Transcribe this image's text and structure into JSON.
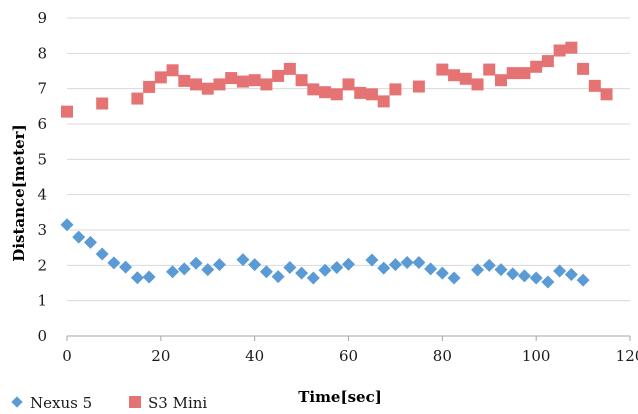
{
  "chart_data": {
    "type": "scatter",
    "title": "",
    "xlabel": "Time[sec]",
    "ylabel": "Distance[meter]",
    "xlim": [
      0,
      120
    ],
    "ylim": [
      0,
      9
    ],
    "xticks": [
      "0",
      "20",
      "40",
      "60",
      "80",
      "100",
      "120"
    ],
    "yticks": [
      "0",
      "1",
      "2",
      "3",
      "4",
      "5",
      "6",
      "7",
      "8",
      "9"
    ],
    "grid": "horizontal",
    "legend_position": "bottom-left",
    "series": [
      {
        "name": "Nexus 5",
        "marker": "diamond",
        "color": "#5b9bd5",
        "points": [
          [
            0,
            3.15
          ],
          [
            2.5,
            2.8
          ],
          [
            5,
            2.65
          ],
          [
            7.5,
            2.32
          ],
          [
            10,
            2.07
          ],
          [
            12.5,
            1.95
          ],
          [
            15,
            1.65
          ],
          [
            17.5,
            1.67
          ],
          [
            22.5,
            1.82
          ],
          [
            25,
            1.9
          ],
          [
            27.5,
            2.06
          ],
          [
            30,
            1.88
          ],
          [
            32.5,
            2.02
          ],
          [
            37.5,
            2.16
          ],
          [
            40,
            2.02
          ],
          [
            42.5,
            1.82
          ],
          [
            45,
            1.68
          ],
          [
            47.5,
            1.94
          ],
          [
            50,
            1.78
          ],
          [
            52.5,
            1.64
          ],
          [
            55,
            1.86
          ],
          [
            57.5,
            1.94
          ],
          [
            60,
            2.03
          ],
          [
            65,
            2.15
          ],
          [
            67.5,
            1.92
          ],
          [
            70,
            2.02
          ],
          [
            72.5,
            2.08
          ],
          [
            75,
            2.08
          ],
          [
            77.5,
            1.9
          ],
          [
            80,
            1.78
          ],
          [
            82.5,
            1.64
          ],
          [
            87.5,
            1.87
          ],
          [
            90,
            2.0
          ],
          [
            92.5,
            1.88
          ],
          [
            95,
            1.76
          ],
          [
            97.5,
            1.7
          ],
          [
            100,
            1.64
          ],
          [
            102.5,
            1.53
          ],
          [
            105,
            1.84
          ],
          [
            107.5,
            1.74
          ],
          [
            110,
            1.58
          ]
        ]
      },
      {
        "name": "S3 Mini",
        "marker": "square",
        "color": "#e57373",
        "points": [
          [
            0,
            6.35
          ],
          [
            7.5,
            6.58
          ],
          [
            15,
            6.72
          ],
          [
            17.5,
            7.05
          ],
          [
            20,
            7.32
          ],
          [
            22.5,
            7.52
          ],
          [
            25,
            7.22
          ],
          [
            27.5,
            7.12
          ],
          [
            30,
            7.0
          ],
          [
            32.5,
            7.12
          ],
          [
            35,
            7.3
          ],
          [
            37.5,
            7.2
          ],
          [
            40,
            7.24
          ],
          [
            42.5,
            7.12
          ],
          [
            45,
            7.36
          ],
          [
            47.5,
            7.56
          ],
          [
            50,
            7.24
          ],
          [
            52.5,
            6.98
          ],
          [
            55,
            6.9
          ],
          [
            57.5,
            6.84
          ],
          [
            60,
            7.12
          ],
          [
            62.5,
            6.88
          ],
          [
            65,
            6.84
          ],
          [
            67.5,
            6.64
          ],
          [
            70,
            6.98
          ],
          [
            75,
            7.06
          ],
          [
            80,
            7.54
          ],
          [
            82.5,
            7.38
          ],
          [
            85,
            7.28
          ],
          [
            87.5,
            7.12
          ],
          [
            90,
            7.54
          ],
          [
            92.5,
            7.24
          ],
          [
            95,
            7.44
          ],
          [
            97.5,
            7.44
          ],
          [
            100,
            7.62
          ],
          [
            102.5,
            7.78
          ],
          [
            105,
            8.08
          ],
          [
            107.5,
            8.16
          ],
          [
            110,
            7.56
          ],
          [
            112.5,
            7.08
          ],
          [
            115,
            6.84
          ]
        ]
      }
    ]
  }
}
